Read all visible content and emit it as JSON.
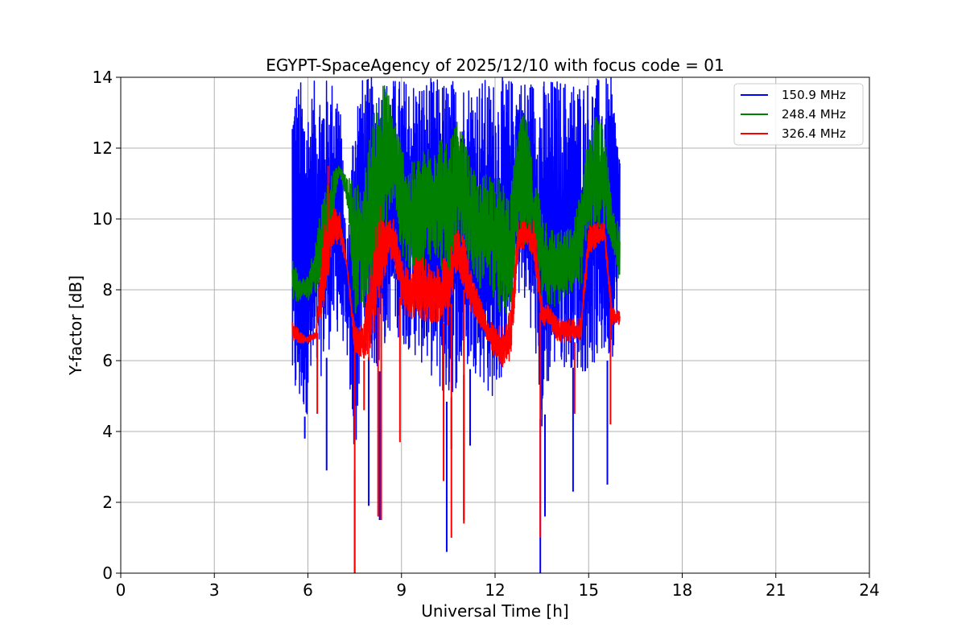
{
  "chart_data": {
    "type": "line",
    "title": "EGYPT-SpaceAgency of 2025/12/10 with focus code = 01",
    "xlabel": "Universal Time [h]",
    "ylabel": "Y-factor [dB]",
    "xlim": [
      0,
      24
    ],
    "ylim": [
      0,
      14
    ],
    "xticks": [
      0,
      3,
      6,
      9,
      12,
      15,
      18,
      21,
      24
    ],
    "yticks": [
      0,
      2,
      4,
      6,
      8,
      10,
      12,
      14
    ],
    "grid": true,
    "legend_position": "top-right",
    "series": [
      {
        "name": "150.9 MHz",
        "color": "#0000ff",
        "x": [
          5.5,
          5.75,
          6.0,
          6.25,
          6.5,
          6.75,
          7.0,
          7.25,
          7.5,
          7.75,
          8.0,
          8.25,
          8.5,
          8.75,
          9.0,
          9.25,
          9.5,
          9.75,
          10.0,
          10.25,
          10.5,
          10.75,
          11.0,
          11.25,
          11.5,
          11.75,
          12.0,
          12.25,
          12.5,
          12.75,
          13.0,
          13.25,
          13.5,
          13.75,
          14.0,
          14.25,
          14.5,
          14.75,
          15.0,
          15.25,
          15.5,
          15.75,
          16.0
        ],
        "low": [
          4.6,
          4.3,
          4.5,
          5.0,
          5.8,
          6.5,
          6.8,
          6.2,
          2.9,
          6.5,
          6.0,
          5.5,
          6.5,
          7.0,
          6.4,
          6.3,
          6.0,
          5.8,
          5.5,
          5.0,
          4.8,
          5.2,
          5.6,
          5.8,
          5.5,
          5.0,
          4.9,
          5.5,
          7.0,
          7.8,
          7.5,
          6.5,
          3.8,
          5.5,
          5.8,
          5.8,
          5.8,
          5.6,
          5.7,
          5.9,
          6.0,
          6.0,
          7.7
        ],
        "high": [
          14,
          14,
          13.5,
          14,
          14,
          14,
          14,
          9.2,
          14,
          14,
          14,
          14,
          14,
          14,
          14,
          14,
          14,
          14,
          14,
          14,
          14,
          14,
          14,
          14,
          14,
          14,
          14,
          14,
          14,
          14,
          14,
          14,
          14,
          14,
          14,
          14,
          14,
          14,
          14,
          14,
          14,
          14,
          12.0
        ],
        "spikes": [
          [
            5.9,
            3.8
          ],
          [
            6.6,
            2.9
          ],
          [
            7.5,
            0.0
          ],
          [
            7.95,
            1.9
          ],
          [
            8.3,
            1.5
          ],
          [
            10.45,
            0.6
          ],
          [
            10.6,
            3.5
          ],
          [
            11.0,
            1.5
          ],
          [
            11.2,
            3.6
          ],
          [
            13.45,
            0.0
          ],
          [
            13.6,
            1.6
          ],
          [
            14.5,
            2.3
          ],
          [
            15.6,
            2.5
          ]
        ]
      },
      {
        "name": "248.4 MHz",
        "color": "#008000",
        "x": [
          5.5,
          5.75,
          6.0,
          6.25,
          6.5,
          6.75,
          7.0,
          7.25,
          7.5,
          7.75,
          8.0,
          8.25,
          8.5,
          8.75,
          9.0,
          9.25,
          9.5,
          9.75,
          10.0,
          10.25,
          10.5,
          10.75,
          11.0,
          11.25,
          11.5,
          11.75,
          12.0,
          12.25,
          12.5,
          12.75,
          13.0,
          13.25,
          13.5,
          13.75,
          14.0,
          14.25,
          14.5,
          14.75,
          15.0,
          15.25,
          15.5,
          15.75,
          16.0
        ],
        "low": [
          7.6,
          7.7,
          7.7,
          7.8,
          8.5,
          9.5,
          11.3,
          10.5,
          7.3,
          7.2,
          7.5,
          8.0,
          9.5,
          10.5,
          9.0,
          8.5,
          8.0,
          8.5,
          9.0,
          8.5,
          8.0,
          9.2,
          9.3,
          8.5,
          8.0,
          8.3,
          7.5,
          7.0,
          7.5,
          9.0,
          9.2,
          8.8,
          7.5,
          7.5,
          7.5,
          7.8,
          7.9,
          8.0,
          9.5,
          9.8,
          9.6,
          9.2,
          7.9
        ],
        "high": [
          9.0,
          8.3,
          8.4,
          9.5,
          10.8,
          11.3,
          11.5,
          11.2,
          11.1,
          11.0,
          12.5,
          13.8,
          13.9,
          13.0,
          12.2,
          11.5,
          11.8,
          12.0,
          12.4,
          12.5,
          12.0,
          12.8,
          12.3,
          11.5,
          11.0,
          11.5,
          11.3,
          11.0,
          10.8,
          12.8,
          13.0,
          11.2,
          10.5,
          9.8,
          9.7,
          9.7,
          9.8,
          11.0,
          12.5,
          13.0,
          12.6,
          10.3,
          9.8
        ]
      },
      {
        "name": "326.4 MHz",
        "color": "#ff0000",
        "x": [
          5.5,
          5.75,
          6.0,
          6.25,
          6.5,
          6.75,
          7.0,
          7.25,
          7.5,
          7.75,
          8.0,
          8.25,
          8.5,
          8.75,
          9.0,
          9.25,
          9.5,
          9.75,
          10.0,
          10.25,
          10.5,
          10.75,
          11.0,
          11.25,
          11.5,
          11.75,
          12.0,
          12.25,
          12.5,
          12.75,
          13.0,
          13.25,
          13.5,
          13.75,
          14.0,
          14.25,
          14.5,
          14.75,
          15.0,
          15.25,
          15.5,
          15.75,
          16.0
        ],
        "low": [
          6.5,
          6.5,
          6.5,
          6.6,
          7.5,
          9.0,
          9.4,
          8.6,
          6.2,
          6.0,
          6.0,
          7.5,
          8.5,
          8.8,
          7.5,
          7.0,
          7.3,
          7.0,
          7.0,
          7.1,
          7.0,
          8.5,
          8.0,
          7.3,
          7.0,
          6.5,
          6.0,
          5.8,
          6.0,
          9.0,
          9.2,
          8.8,
          7.0,
          7.0,
          6.5,
          6.5,
          6.5,
          6.6,
          9.0,
          9.2,
          9.4,
          7.0,
          7.0
        ],
        "high": [
          7.2,
          6.8,
          6.7,
          6.8,
          9.8,
          10.3,
          10.3,
          8.8,
          7.0,
          7.0,
          8.5,
          10.5,
          10.2,
          10.0,
          9.0,
          8.5,
          9.0,
          9.0,
          8.5,
          8.8,
          9.0,
          9.8,
          9.5,
          8.5,
          7.8,
          7.2,
          7.0,
          7.0,
          7.5,
          10.0,
          10.0,
          10.0,
          7.8,
          7.5,
          7.2,
          7.2,
          7.2,
          7.2,
          9.8,
          9.9,
          9.9,
          7.5,
          7.4
        ],
        "spikes": [
          [
            6.3,
            4.5
          ],
          [
            6.65,
            11.5
          ],
          [
            7.5,
            0.0
          ],
          [
            7.8,
            4.6
          ],
          [
            8.25,
            1.6
          ],
          [
            8.35,
            1.5
          ],
          [
            8.95,
            3.7
          ],
          [
            10.35,
            2.6
          ],
          [
            10.6,
            1.0
          ],
          [
            11.0,
            1.4
          ],
          [
            13.45,
            1.0
          ],
          [
            14.55,
            4.5
          ],
          [
            15.7,
            4.2
          ]
        ]
      }
    ]
  }
}
